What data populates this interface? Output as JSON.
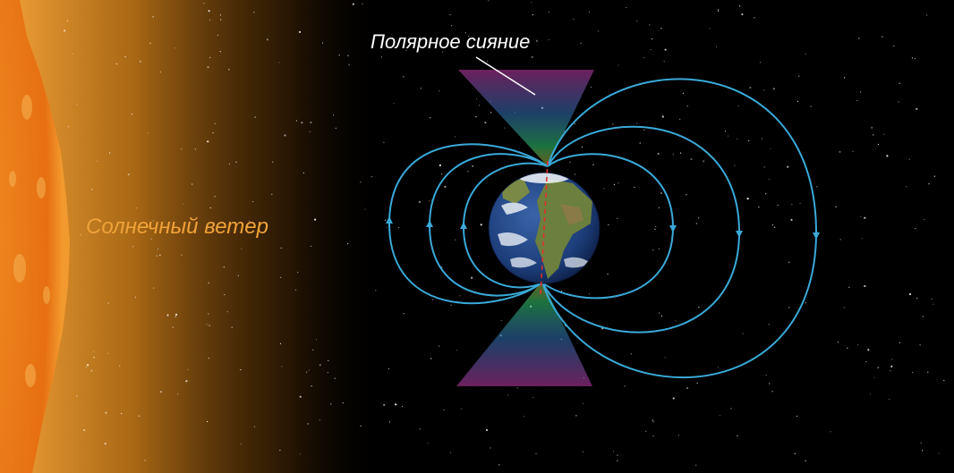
{
  "labels": {
    "solar_wind": "Солнечный ветер",
    "aurora": "Полярное сияние"
  },
  "colors": {
    "background": "#000000",
    "sun_core": "#e8761a",
    "sun_glow": "#f6a23a",
    "field_lines": "#3aa9d8",
    "solar_wind_text": "#f0a23a",
    "aurora_text": "#ffffff",
    "magnetic_axis": "#e0302a",
    "ocean": "#1e3f7a",
    "land": "#5f7a3c"
  },
  "icons": {
    "sun": "sun-icon",
    "earth": "earth-icon"
  }
}
